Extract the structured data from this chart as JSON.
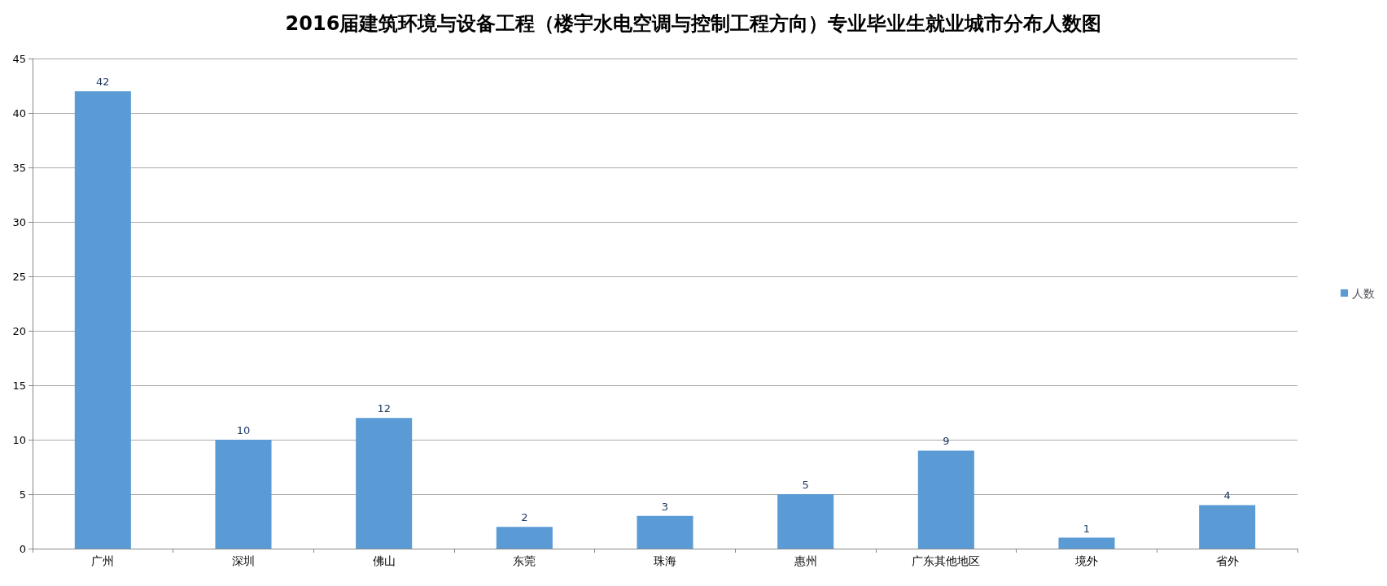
{
  "chart_data": {
    "type": "bar",
    "title": "2016届建筑环境与设备工程（楼宇水电空调与控制工程方向）专业毕业生就业城市分布人数图",
    "categories": [
      "广州",
      "深圳",
      "佛山",
      "东莞",
      "珠海",
      "惠州",
      "广东其他地区",
      "境外",
      "省外"
    ],
    "series": [
      {
        "name": "人数",
        "color": "#5b9bd5",
        "values": [
          42,
          10,
          12,
          2,
          3,
          5,
          9,
          1,
          4
        ]
      }
    ],
    "ylim": [
      0,
      45
    ],
    "yticks": [
      0,
      5,
      10,
      15,
      20,
      25,
      30,
      35,
      40,
      45
    ],
    "grid": "y",
    "legend": "right",
    "data_labels": true
  }
}
